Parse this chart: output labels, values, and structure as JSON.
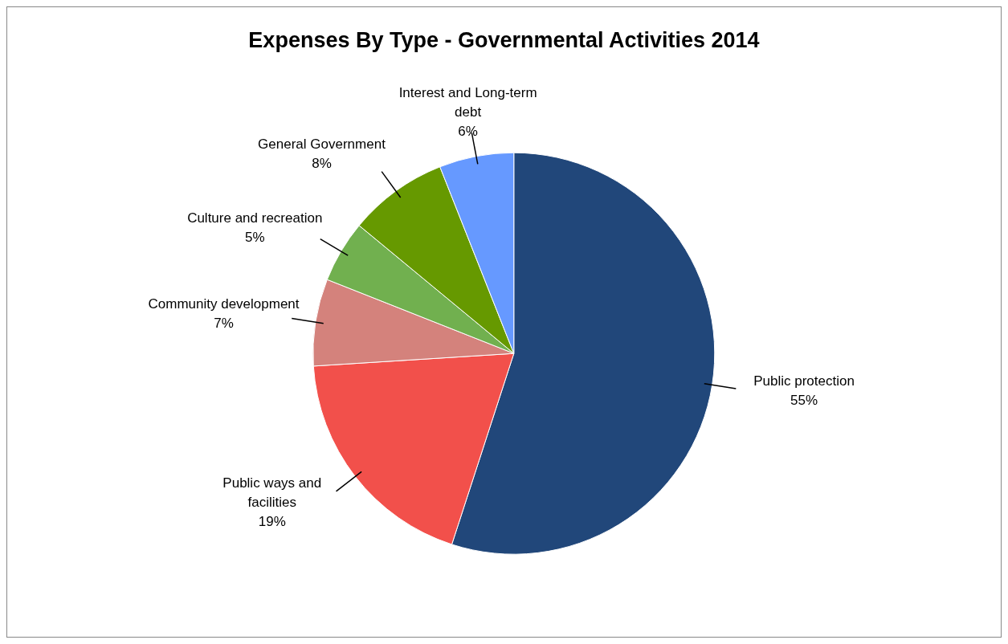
{
  "chart_data": {
    "type": "pie",
    "title": "Expenses By Type - Governmental Activities 2014",
    "categories": [
      "Public protection",
      "Public ways and facilities",
      "Community development",
      "Culture and recreation",
      "General Government",
      "Interest and Long-term debt"
    ],
    "values": [
      55,
      19,
      7,
      5,
      8,
      6
    ],
    "value_labels": [
      "55%",
      "19%",
      "7%",
      "5%",
      "8%",
      "6%"
    ],
    "colors": [
      "#21477a",
      "#f2504b",
      "#d4827c",
      "#71b04f",
      "#669900",
      "#6699ff"
    ],
    "legend": false
  }
}
